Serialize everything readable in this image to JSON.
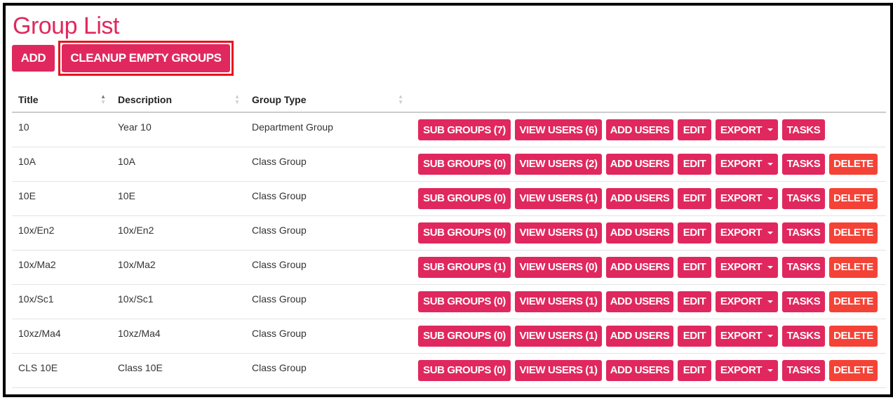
{
  "page": {
    "title": "Group List"
  },
  "toolbar": {
    "add_label": "ADD",
    "cleanup_label": "CLEANUP EMPTY GROUPS"
  },
  "colors": {
    "primary": "#e0285e",
    "danger": "#f44336",
    "highlight": "#e8141e"
  },
  "table": {
    "columns": [
      {
        "label": "Title",
        "sort": "ascending"
      },
      {
        "label": "Description",
        "sort": "none"
      },
      {
        "label": "Group Type",
        "sort": "none"
      }
    ],
    "action_labels": {
      "sub_groups": "SUB GROUPS",
      "view_users": "VIEW USERS",
      "add_users": "ADD USERS",
      "edit": "EDIT",
      "export": "EXPORT",
      "tasks": "TASKS",
      "delete": "DELETE"
    },
    "rows": [
      {
        "title": "10",
        "description": "Year 10",
        "type": "Department Group",
        "sub_groups": "SUB GROUPS (7)",
        "view_users": "VIEW USERS (6)",
        "deletable": false
      },
      {
        "title": "10A",
        "description": "10A",
        "type": "Class Group",
        "sub_groups": "SUB GROUPS (0)",
        "view_users": "VIEW USERS (2)",
        "deletable": true
      },
      {
        "title": "10E",
        "description": "10E",
        "type": "Class Group",
        "sub_groups": "SUB GROUPS (0)",
        "view_users": "VIEW USERS (1)",
        "deletable": true
      },
      {
        "title": "10x/En2",
        "description": "10x/En2",
        "type": "Class Group",
        "sub_groups": "SUB GROUPS (0)",
        "view_users": "VIEW USERS (1)",
        "deletable": true
      },
      {
        "title": "10x/Ma2",
        "description": "10x/Ma2",
        "type": "Class Group",
        "sub_groups": "SUB GROUPS (1)",
        "view_users": "VIEW USERS (0)",
        "deletable": true
      },
      {
        "title": "10x/Sc1",
        "description": "10x/Sc1",
        "type": "Class Group",
        "sub_groups": "SUB GROUPS (0)",
        "view_users": "VIEW USERS (1)",
        "deletable": true
      },
      {
        "title": "10xz/Ma4",
        "description": "10xz/Ma4",
        "type": "Class Group",
        "sub_groups": "SUB GROUPS (0)",
        "view_users": "VIEW USERS (1)",
        "deletable": true
      },
      {
        "title": "CLS 10E",
        "description": "Class 10E",
        "type": "Class Group",
        "sub_groups": "SUB GROUPS (0)",
        "view_users": "VIEW USERS (1)",
        "deletable": true
      }
    ]
  }
}
